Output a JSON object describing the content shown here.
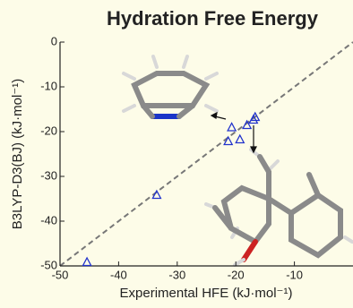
{
  "chart_data": {
    "type": "scatter",
    "title": "Hydration Free Energy",
    "x_label": "Experimental HFE (kJ·mol⁻¹)",
    "y_label": "B3LYP-D3(BJ) (kJ·mol⁻¹)",
    "x": [
      -45.4,
      -33.5,
      -20.7,
      -21.3,
      -19.3,
      -18.1,
      -17.0,
      -16.7
    ],
    "values": [
      -49.2,
      -34.2,
      -19.1,
      -22.2,
      -21.8,
      -18.6,
      -17.4,
      -16.8
    ],
    "color": "#2233cc",
    "xlim": [
      -50,
      0
    ],
    "ylim": [
      -50,
      0
    ],
    "xticks": [
      -50,
      -40,
      -30,
      -20,
      -10
    ],
    "yticks": [
      -50,
      -40,
      -30,
      -20,
      -10,
      0
    ]
  }
}
